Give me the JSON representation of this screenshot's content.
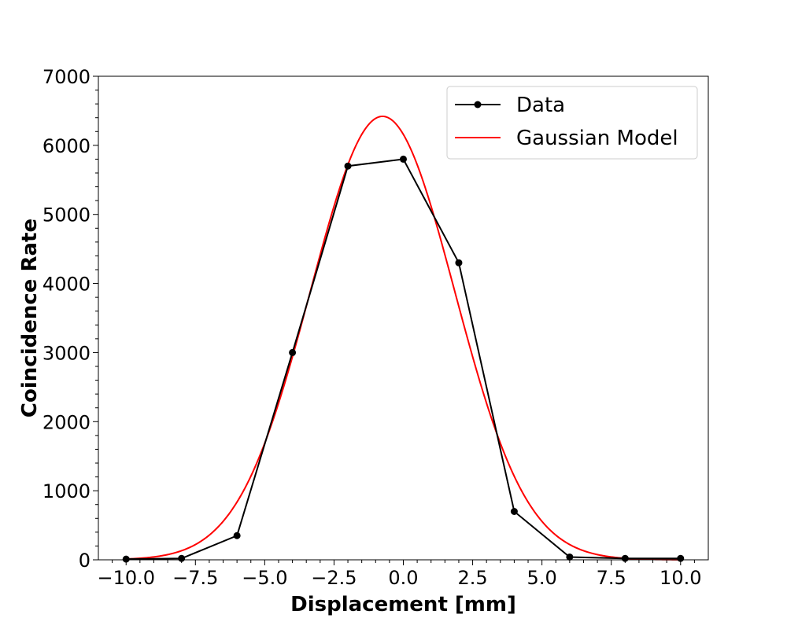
{
  "chart_data": {
    "type": "line",
    "title": "",
    "xlabel": "Displacement [mm]",
    "ylabel": "Coincidence Rate",
    "xlim": [
      -11.0,
      11.0
    ],
    "ylim": [
      0,
      7000
    ],
    "x_ticks": [
      -10.0,
      -7.5,
      -5.0,
      -2.5,
      0.0,
      2.5,
      5.0,
      7.5,
      10.0
    ],
    "x_tick_labels": [
      "−10.0",
      "−7.5",
      "−5.0",
      "−2.5",
      "0.0",
      "2.5",
      "5.0",
      "7.5",
      "10.0"
    ],
    "y_ticks": [
      0,
      1000,
      2000,
      3000,
      4000,
      5000,
      6000,
      7000
    ],
    "y_tick_labels": [
      "0",
      "1000",
      "2000",
      "3000",
      "4000",
      "5000",
      "6000",
      "7000"
    ],
    "grid": false,
    "legend_position": "top-right",
    "series": [
      {
        "name": "Data",
        "style": "line-with-markers",
        "color": "#000000",
        "x": [
          -10,
          -8,
          -6,
          -4,
          -2,
          0,
          2,
          4,
          6,
          8,
          10
        ],
        "y": [
          10,
          20,
          350,
          3000,
          5700,
          5800,
          4300,
          700,
          40,
          20,
          20
        ]
      },
      {
        "name": "Gaussian Model",
        "style": "line",
        "color": "#ff0000",
        "model": "gaussian",
        "amplitude": 6420,
        "mean": -0.75,
        "sigma": 2.6,
        "x_range": [
          -10,
          10
        ]
      }
    ]
  }
}
